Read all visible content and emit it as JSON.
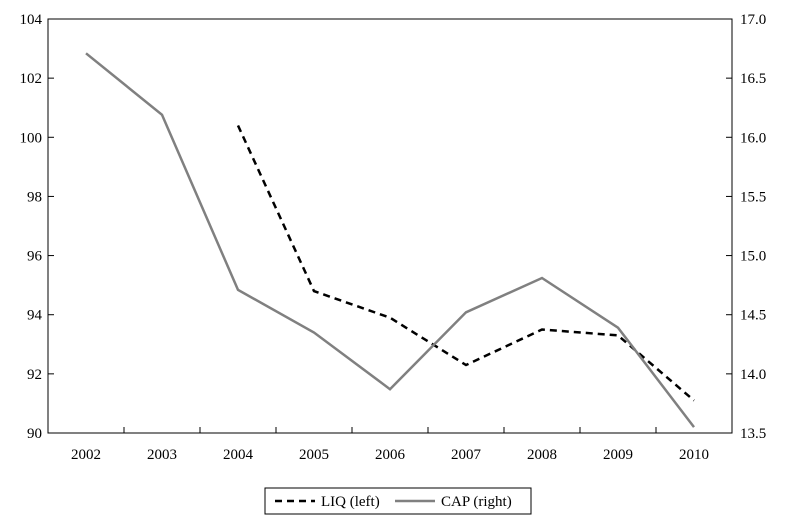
{
  "chart_data": {
    "type": "line",
    "title": "",
    "xlabel": "",
    "ylabel": "",
    "x": [
      "2002",
      "2003",
      "2004",
      "2005",
      "2006",
      "2007",
      "2008",
      "2009",
      "2010"
    ],
    "ylim_left": [
      90,
      104
    ],
    "ylim_right": [
      13.5,
      17.0
    ],
    "yticks_left": [
      "90",
      "92",
      "94",
      "96",
      "98",
      "100",
      "102",
      "104"
    ],
    "yticks_right": [
      "13.5",
      "14.0",
      "14.5",
      "15.0",
      "15.5",
      "16.0",
      "16.5",
      "17.0"
    ],
    "grid": false,
    "legend_position": "bottom",
    "series": [
      {
        "name": "LIQ (left)",
        "axis": "left",
        "style": "dashed",
        "color": "#000000",
        "values": [
          null,
          null,
          100.4,
          94.8,
          93.9,
          92.3,
          93.5,
          93.3,
          91.1
        ]
      },
      {
        "name": "CAP (right)",
        "axis": "right",
        "style": "solid",
        "color": "#808080",
        "values": [
          16.71,
          16.19,
          14.71,
          14.35,
          13.87,
          14.52,
          14.81,
          14.39,
          13.55
        ]
      }
    ]
  }
}
